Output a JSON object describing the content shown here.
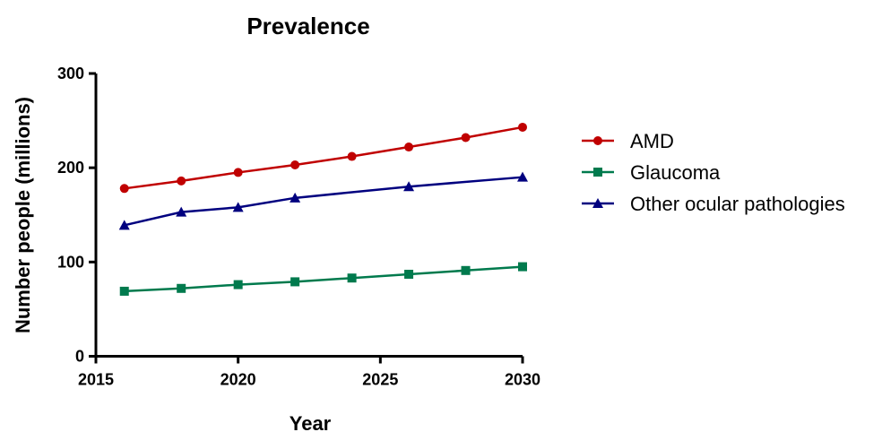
{
  "chart_data": {
    "type": "line",
    "title": "Prevalence",
    "xlabel": "Year",
    "ylabel": "Number people (millions)",
    "xlim": [
      2015,
      2030
    ],
    "ylim": [
      0,
      300
    ],
    "x_ticks": [
      "2015",
      "2020",
      "2025",
      "2030"
    ],
    "y_ticks": [
      "0",
      "100",
      "200",
      "300"
    ],
    "grid": false,
    "legend_position": "right",
    "series": [
      {
        "name": "AMD",
        "color": "#c00000",
        "marker": "circle",
        "x": [
          2016,
          2018,
          2020,
          2022,
          2024,
          2026,
          2028,
          2030
        ],
        "values": [
          178,
          186,
          195,
          203,
          212,
          222,
          232,
          243
        ]
      },
      {
        "name": "Glaucoma",
        "color": "#007a4d",
        "marker": "square",
        "x": [
          2016,
          2018,
          2020,
          2022,
          2024,
          2026,
          2028,
          2030
        ],
        "values": [
          69,
          72,
          76,
          79,
          83,
          87,
          91,
          95
        ]
      },
      {
        "name": "Other ocular pathologies",
        "color": "#00007f",
        "marker": "triangle",
        "x": [
          2016,
          2018,
          2020,
          2022,
          2026,
          2030
        ],
        "values": [
          139,
          153,
          158,
          168,
          180,
          190
        ]
      }
    ]
  }
}
